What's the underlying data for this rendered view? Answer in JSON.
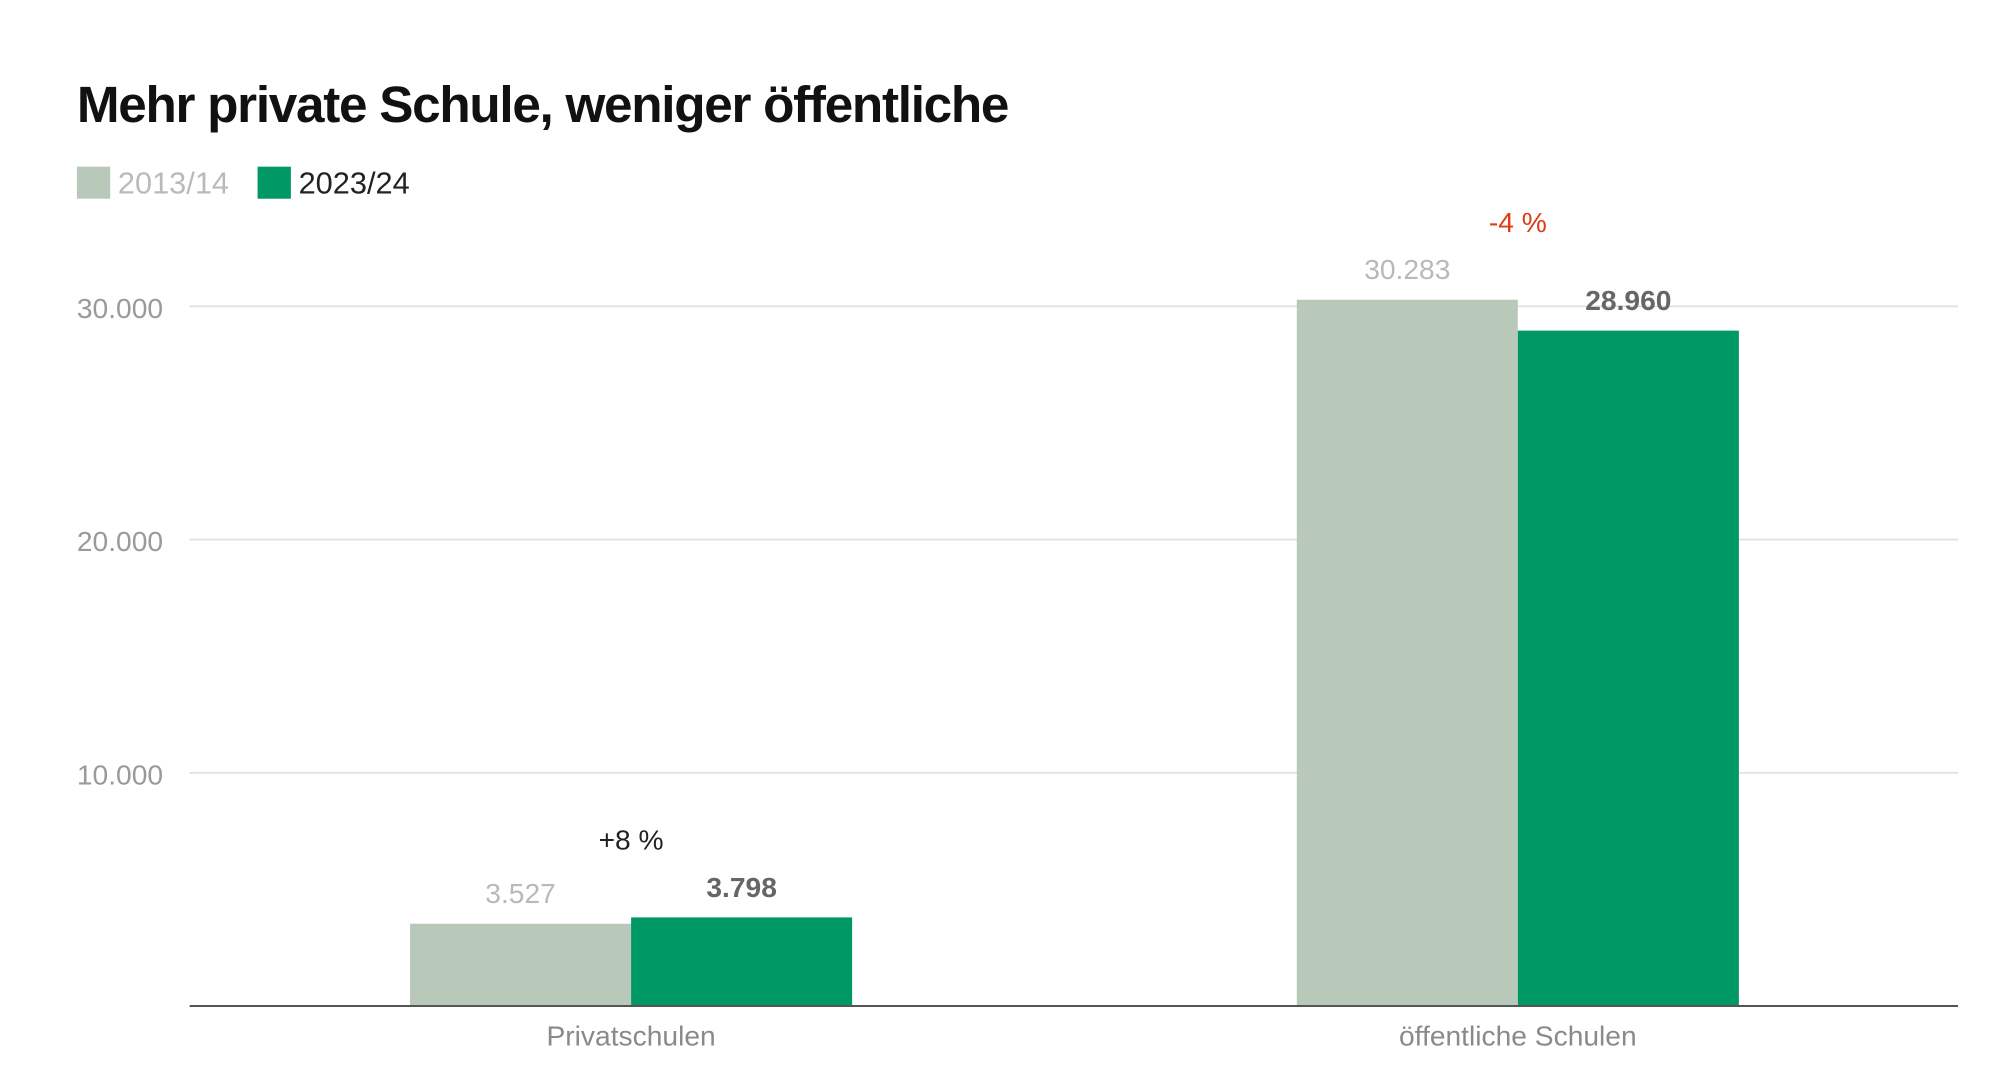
{
  "chart_data": {
    "type": "bar",
    "title": "Mehr private Schule, weniger öffentliche",
    "xlabel": "",
    "ylabel": "",
    "ylim": [
      0,
      30000
    ],
    "yticks": [
      10000,
      20000,
      30000
    ],
    "ytick_labels": [
      "10.000",
      "20.000",
      "30.000"
    ],
    "grid": true,
    "legend_position": "top-left",
    "categories": [
      "Privatschulen",
      "öffentliche Schulen"
    ],
    "series": [
      {
        "name": "2013/14",
        "color": "#b8c9b9",
        "values": [
          3527,
          30283
        ],
        "labels": [
          "3.527",
          "30.283"
        ]
      },
      {
        "name": "2023/24",
        "color": "#009864",
        "values": [
          3798,
          28960
        ],
        "labels": [
          "3.798",
          "28.960"
        ]
      }
    ],
    "annotations": [
      {
        "text": "+8 %",
        "category": "Privatschulen",
        "color": "#222222"
      },
      {
        "text": "-4 %",
        "category": "öffentliche Schulen",
        "color": "#e03c14"
      }
    ]
  }
}
